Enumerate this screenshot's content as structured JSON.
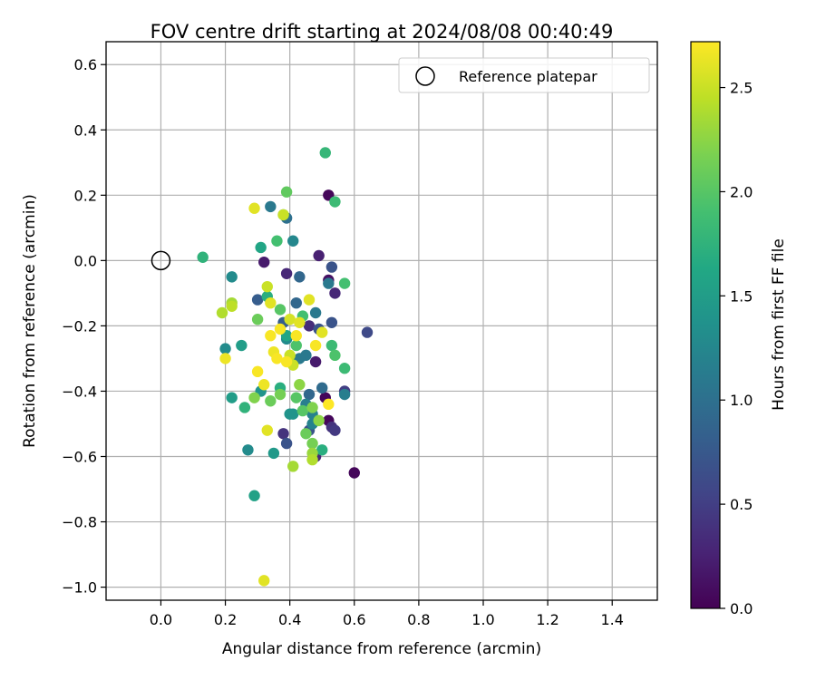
{
  "chart_data": {
    "type": "scatter",
    "title": "FOV centre drift starting at 2024/08/08 00:40:49",
    "xlabel": "Angular distance from reference (arcmin)",
    "ylabel": "Rotation from reference (arcmin)",
    "xlim": [
      -0.17,
      1.54
    ],
    "ylim": [
      -1.04,
      0.67
    ],
    "xticks": [
      "0.0",
      "0.2",
      "0.4",
      "0.6",
      "0.8",
      "1.0",
      "1.2",
      "1.4"
    ],
    "yticks": [
      "0.6",
      "0.4",
      "0.2",
      "0.0",
      "−0.2",
      "−0.4",
      "−0.6",
      "−0.8",
      "−1.0"
    ],
    "grid": true,
    "legend": {
      "placement": "top-right",
      "entries": [
        {
          "label": "Reference platepar",
          "marker": "open-circle",
          "color": "#000000"
        }
      ]
    },
    "reference_point": {
      "x": 0.0,
      "y": 0.0
    },
    "colorbar": {
      "label": "Hours from first FF file",
      "colormap": "viridis",
      "range": [
        0.0,
        2.72
      ],
      "ticks": [
        "0.0",
        "0.5",
        "1.0",
        "1.5",
        "2.0",
        "2.5"
      ]
    },
    "points": [
      {
        "x": 0.52,
        "y": 0.2,
        "c": 0.05
      },
      {
        "x": 0.51,
        "y": -0.42,
        "c": 0.05
      },
      {
        "x": 0.52,
        "y": -0.49,
        "c": 0.05
      },
      {
        "x": 0.6,
        "y": -0.65,
        "c": 0.05
      },
      {
        "x": 0.52,
        "y": -0.06,
        "c": 0.12
      },
      {
        "x": 0.32,
        "y": -0.005,
        "c": 0.2
      },
      {
        "x": 0.49,
        "y": 0.015,
        "c": 0.25
      },
      {
        "x": 0.48,
        "y": -0.31,
        "c": 0.2
      },
      {
        "x": 0.39,
        "y": -0.04,
        "c": 0.3
      },
      {
        "x": 0.54,
        "y": -0.1,
        "c": 0.3
      },
      {
        "x": 0.46,
        "y": -0.2,
        "c": 0.35
      },
      {
        "x": 0.38,
        "y": -0.53,
        "c": 0.4
      },
      {
        "x": 0.53,
        "y": -0.51,
        "c": 0.4
      },
      {
        "x": 0.54,
        "y": -0.52,
        "c": 0.45
      },
      {
        "x": 0.48,
        "y": -0.6,
        "c": 0.3
      },
      {
        "x": 0.57,
        "y": -0.4,
        "c": 0.5
      },
      {
        "x": 0.64,
        "y": -0.22,
        "c": 0.6
      },
      {
        "x": 0.53,
        "y": -0.02,
        "c": 0.7
      },
      {
        "x": 0.53,
        "y": -0.19,
        "c": 0.7
      },
      {
        "x": 0.49,
        "y": -0.21,
        "c": 0.7
      },
      {
        "x": 0.39,
        "y": -0.56,
        "c": 0.7
      },
      {
        "x": 0.46,
        "y": -0.52,
        "c": 0.7
      },
      {
        "x": 0.3,
        "y": -0.12,
        "c": 0.8
      },
      {
        "x": 0.38,
        "y": -0.19,
        "c": 0.8
      },
      {
        "x": 0.41,
        "y": -0.31,
        "c": 0.8
      },
      {
        "x": 0.43,
        "y": -0.05,
        "c": 0.9
      },
      {
        "x": 0.42,
        "y": -0.13,
        "c": 0.9
      },
      {
        "x": 0.46,
        "y": -0.41,
        "c": 0.9
      },
      {
        "x": 0.5,
        "y": -0.39,
        "c": 0.95
      },
      {
        "x": 0.39,
        "y": 0.13,
        "c": 1.0
      },
      {
        "x": 0.34,
        "y": 0.165,
        "c": 1.1
      },
      {
        "x": 0.52,
        "y": -0.07,
        "c": 1.1
      },
      {
        "x": 0.48,
        "y": -0.16,
        "c": 1.1
      },
      {
        "x": 0.45,
        "y": -0.29,
        "c": 1.1
      },
      {
        "x": 0.43,
        "y": -0.3,
        "c": 1.1
      },
      {
        "x": 0.57,
        "y": -0.41,
        "c": 1.15
      },
      {
        "x": 0.45,
        "y": -0.44,
        "c": 1.15
      },
      {
        "x": 0.47,
        "y": -0.47,
        "c": 1.2
      },
      {
        "x": 0.47,
        "y": -0.5,
        "c": 1.2
      },
      {
        "x": 0.41,
        "y": 0.06,
        "c": 1.25
      },
      {
        "x": 0.22,
        "y": -0.05,
        "c": 1.3
      },
      {
        "x": 0.39,
        "y": -0.24,
        "c": 1.3
      },
      {
        "x": 0.2,
        "y": -0.27,
        "c": 1.3
      },
      {
        "x": 0.27,
        "y": -0.58,
        "c": 1.3
      },
      {
        "x": 0.31,
        "y": -0.4,
        "c": 1.4
      },
      {
        "x": 0.41,
        "y": -0.47,
        "c": 1.4
      },
      {
        "x": 0.4,
        "y": -0.47,
        "c": 1.4
      },
      {
        "x": 0.35,
        "y": -0.59,
        "c": 1.45
      },
      {
        "x": 0.22,
        "y": -0.42,
        "c": 1.5
      },
      {
        "x": 0.25,
        "y": -0.26,
        "c": 1.5
      },
      {
        "x": 0.29,
        "y": -0.72,
        "c": 1.55
      },
      {
        "x": 0.31,
        "y": 0.04,
        "c": 1.6
      },
      {
        "x": 0.39,
        "y": -0.23,
        "c": 1.6
      },
      {
        "x": 0.33,
        "y": -0.11,
        "c": 1.7
      },
      {
        "x": 0.37,
        "y": -0.39,
        "c": 1.7
      },
      {
        "x": 0.5,
        "y": -0.58,
        "c": 1.7
      },
      {
        "x": 0.13,
        "y": 0.01,
        "c": 1.75
      },
      {
        "x": 0.26,
        "y": -0.45,
        "c": 1.75
      },
      {
        "x": 0.51,
        "y": 0.33,
        "c": 1.8
      },
      {
        "x": 0.54,
        "y": 0.18,
        "c": 1.85
      },
      {
        "x": 0.53,
        "y": -0.26,
        "c": 1.85
      },
      {
        "x": 0.57,
        "y": -0.33,
        "c": 1.85
      },
      {
        "x": 0.38,
        "y": 0.14,
        "c": 1.9
      },
      {
        "x": 0.36,
        "y": 0.06,
        "c": 1.9
      },
      {
        "x": 0.57,
        "y": -0.07,
        "c": 1.9
      },
      {
        "x": 0.44,
        "y": -0.17,
        "c": 1.9
      },
      {
        "x": 0.54,
        "y": -0.29,
        "c": 1.95
      },
      {
        "x": 0.42,
        "y": -0.26,
        "c": 1.95
      },
      {
        "x": 0.37,
        "y": -0.15,
        "c": 2.0
      },
      {
        "x": 0.42,
        "y": -0.42,
        "c": 2.0
      },
      {
        "x": 0.44,
        "y": -0.46,
        "c": 2.0
      },
      {
        "x": 0.39,
        "y": 0.21,
        "c": 2.05
      },
      {
        "x": 0.3,
        "y": -0.18,
        "c": 2.1
      },
      {
        "x": 0.34,
        "y": -0.43,
        "c": 2.1
      },
      {
        "x": 0.45,
        "y": -0.53,
        "c": 2.1
      },
      {
        "x": 0.47,
        "y": -0.56,
        "c": 2.15
      },
      {
        "x": 0.37,
        "y": -0.41,
        "c": 2.15
      },
      {
        "x": 0.29,
        "y": -0.42,
        "c": 2.2
      },
      {
        "x": 0.47,
        "y": -0.45,
        "c": 2.2
      },
      {
        "x": 0.43,
        "y": -0.38,
        "c": 2.25
      },
      {
        "x": 0.49,
        "y": -0.49,
        "c": 2.25
      },
      {
        "x": 0.47,
        "y": -0.59,
        "c": 2.3
      },
      {
        "x": 0.41,
        "y": -0.63,
        "c": 2.35
      },
      {
        "x": 0.47,
        "y": -0.61,
        "c": 2.4
      },
      {
        "x": 0.22,
        "y": -0.13,
        "c": 2.35
      },
      {
        "x": 0.19,
        "y": -0.16,
        "c": 2.4
      },
      {
        "x": 0.22,
        "y": -0.14,
        "c": 2.45
      },
      {
        "x": 0.33,
        "y": -0.08,
        "c": 2.5
      },
      {
        "x": 0.38,
        "y": 0.14,
        "c": 2.5
      },
      {
        "x": 0.4,
        "y": -0.29,
        "c": 2.5
      },
      {
        "x": 0.41,
        "y": -0.32,
        "c": 2.5
      },
      {
        "x": 0.4,
        "y": -0.18,
        "c": 2.55
      },
      {
        "x": 0.43,
        "y": -0.19,
        "c": 2.6
      },
      {
        "x": 0.29,
        "y": 0.16,
        "c": 2.6
      },
      {
        "x": 0.34,
        "y": -0.13,
        "c": 2.6
      },
      {
        "x": 0.46,
        "y": -0.12,
        "c": 2.6
      },
      {
        "x": 0.5,
        "y": -0.22,
        "c": 2.6
      },
      {
        "x": 0.33,
        "y": -0.52,
        "c": 2.6
      },
      {
        "x": 0.32,
        "y": -0.98,
        "c": 2.6
      },
      {
        "x": 0.2,
        "y": -0.3,
        "c": 2.65
      },
      {
        "x": 0.32,
        "y": -0.38,
        "c": 2.65
      },
      {
        "x": 0.35,
        "y": -0.28,
        "c": 2.65
      },
      {
        "x": 0.36,
        "y": -0.3,
        "c": 2.7
      },
      {
        "x": 0.3,
        "y": -0.34,
        "c": 2.7
      },
      {
        "x": 0.34,
        "y": -0.23,
        "c": 2.7
      },
      {
        "x": 0.42,
        "y": -0.23,
        "c": 2.7
      },
      {
        "x": 0.37,
        "y": -0.21,
        "c": 2.7
      },
      {
        "x": 0.48,
        "y": -0.26,
        "c": 2.7
      },
      {
        "x": 0.52,
        "y": -0.44,
        "c": 2.72
      },
      {
        "x": 0.39,
        "y": -0.31,
        "c": 2.7
      }
    ]
  }
}
